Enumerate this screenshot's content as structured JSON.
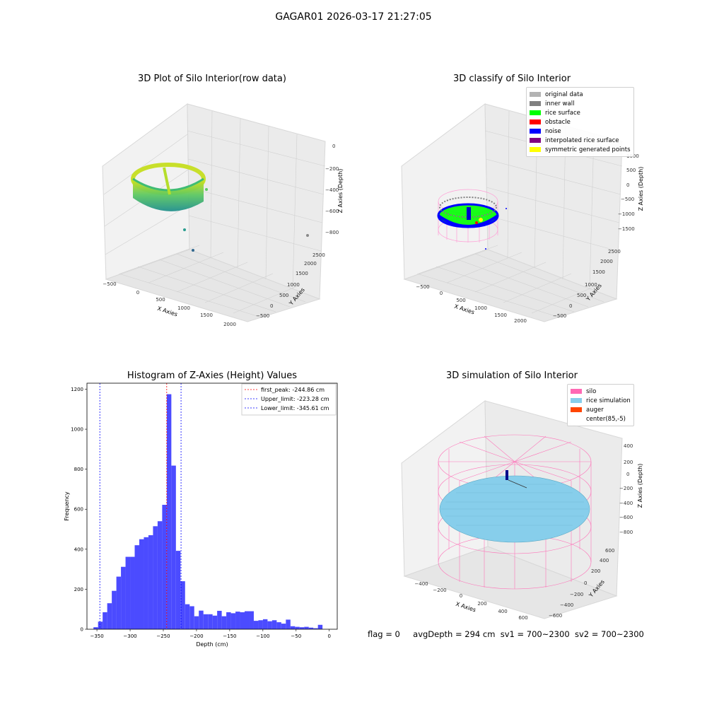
{
  "suptitle": "GAGAR01 2026-03-17 21:27:05",
  "panels": {
    "raw": {
      "title": "3D Plot of Silo Interior(row data)",
      "xlabel": "X Axies",
      "ylabel": "Y Axies",
      "zlabel": "Z Axies (Depth)",
      "xticks": [
        "−500",
        "0",
        "500",
        "1000",
        "1500",
        "2000"
      ],
      "yticks": [
        "−500",
        "0",
        "500",
        "1000",
        "1500",
        "2000",
        "2500"
      ],
      "zticks": [
        "0",
        "−200",
        "−400",
        "−600",
        "−800"
      ]
    },
    "classify": {
      "title": "3D classify of Silo Interior",
      "xlabel": "X Axies",
      "ylabel": "Y Axies",
      "zlabel": "Z Axies (Depth)",
      "xticks": [
        "−500",
        "0",
        "500",
        "1000",
        "1500",
        "2000"
      ],
      "yticks": [
        "−500",
        "0",
        "500",
        "1000",
        "1500",
        "2000",
        "2500"
      ],
      "zticks": [
        "1000",
        "500",
        "0",
        "−500",
        "−1000",
        "−1500"
      ],
      "legend": [
        {
          "label": "original data",
          "color": "#b3b3b3"
        },
        {
          "label": "inner wall",
          "color": "#808080"
        },
        {
          "label": "rice surface",
          "color": "#00ff00"
        },
        {
          "label": "obstacle",
          "color": "#ff0000"
        },
        {
          "label": "noise",
          "color": "#0000ff"
        },
        {
          "label": "interpolated rice surface",
          "color": "#800080"
        },
        {
          "label": "symmetric generated points",
          "color": "#ffff00"
        }
      ]
    },
    "simulation": {
      "title": "3D simulation of Silo Interior",
      "xlabel": "X Axies",
      "ylabel": "Y Axies",
      "zlabel": "Z Axies (Depth)",
      "xticks": [
        "−400",
        "−200",
        "0",
        "200",
        "400",
        "600"
      ],
      "yticks": [
        "−600",
        "−400",
        "−200",
        "0",
        "200",
        "400",
        "600"
      ],
      "zticks": [
        "400",
        "200",
        "0",
        "−200",
        "−400",
        "−600",
        "−800"
      ],
      "legend": [
        {
          "label": "silo",
          "color": "#ff69b4"
        },
        {
          "label": "rice simulation",
          "color": "#87ceeb"
        },
        {
          "label": "auger",
          "color": "#ff4500"
        },
        {
          "label": "center(85,-5)",
          "color": "#ffffff"
        }
      ]
    }
  },
  "chart_data": {
    "type": "bar",
    "title": "Histogram of Z-Axies (Height) Values",
    "xlabel": "Depth (cm)",
    "ylabel": "Frequency",
    "xlim": [
      -365,
      12
    ],
    "ylim": [
      0,
      1230
    ],
    "xticks": [
      -350,
      -300,
      -250,
      -200,
      -150,
      -100,
      -50,
      0
    ],
    "xtick_labels": [
      "−350",
      "−300",
      "−250",
      "−200",
      "−150",
      "−100",
      "−50",
      "0"
    ],
    "yticks": [
      0,
      200,
      400,
      600,
      800,
      1000,
      1200
    ],
    "bin_width": 6.9,
    "bin_start": -355.2,
    "values": [
      10,
      38,
      85,
      130,
      192,
      263,
      312,
      362,
      362,
      420,
      450,
      460,
      470,
      515,
      540,
      622,
      1175,
      818,
      392,
      240,
      125,
      115,
      65,
      93,
      75,
      75,
      68,
      92,
      65,
      85,
      80,
      88,
      85,
      90,
      90,
      42,
      45,
      50,
      40,
      45,
      35,
      28,
      48,
      15,
      12,
      10,
      12,
      8,
      5,
      22
    ],
    "color": "#4b4bff",
    "vlines": [
      {
        "name": "first_peak: -244.86 cm",
        "x": -244.86,
        "color": "#ff0000"
      },
      {
        "name": "Upper_limit: -223.28 cm",
        "x": -223.28,
        "color": "#0000ff"
      },
      {
        "name": "Lower_limit: -345.61 cm",
        "x": -345.61,
        "color": "#0000ff"
      }
    ],
    "legend_position": "upper right"
  },
  "footer": {
    "flag": "flag = 0",
    "avg": "avgDepth = 294 cm",
    "sv1": "sv1 = 700~2300",
    "sv2": "sv2 = 700~2300"
  }
}
